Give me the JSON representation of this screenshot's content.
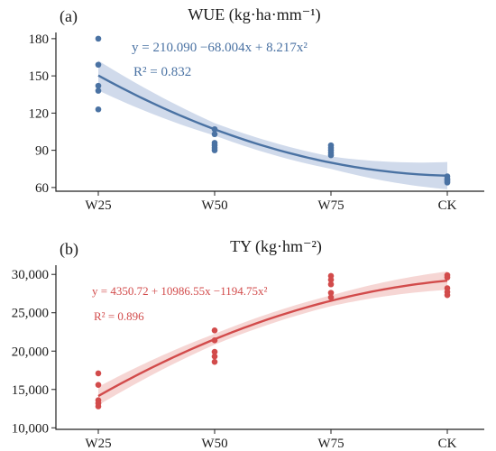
{
  "chart_data": [
    {
      "panel_label": "(a)",
      "type": "scatter",
      "title": "WUE (kg·ha·mm⁻¹)",
      "categories": [
        "W25",
        "W50",
        "W75",
        "CK"
      ],
      "x": [
        1,
        2,
        3,
        4
      ],
      "ylim": [
        57,
        185
      ],
      "yticks": [
        60,
        90,
        120,
        150,
        180
      ],
      "ytick_labels": [
        "60",
        "90",
        "120",
        "150",
        "180"
      ],
      "points": [
        {
          "x": 1,
          "y": 180
        },
        {
          "x": 1,
          "y": 159
        },
        {
          "x": 1,
          "y": 142
        },
        {
          "x": 1,
          "y": 138
        },
        {
          "x": 1,
          "y": 123
        },
        {
          "x": 2,
          "y": 107
        },
        {
          "x": 2,
          "y": 103
        },
        {
          "x": 2,
          "y": 96
        },
        {
          "x": 2,
          "y": 94
        },
        {
          "x": 2,
          "y": 92
        },
        {
          "x": 2,
          "y": 90
        },
        {
          "x": 3,
          "y": 94
        },
        {
          "x": 3,
          "y": 92
        },
        {
          "x": 3,
          "y": 90
        },
        {
          "x": 3,
          "y": 88
        },
        {
          "x": 3,
          "y": 86
        },
        {
          "x": 4,
          "y": 69
        },
        {
          "x": 4,
          "y": 67
        },
        {
          "x": 4,
          "y": 66
        },
        {
          "x": 4,
          "y": 65
        },
        {
          "x": 4,
          "y": 64
        }
      ],
      "fit": {
        "a": 210.09,
        "b": -68.004,
        "c": 8.217
      },
      "ci_halfwidth": [
        12,
        5,
        5,
        11
      ],
      "equation": "y = 210.090 −68.004x + 8.217x²",
      "r2": "R² = 0.832",
      "color": "#4a72a3",
      "band_color": "#c8d3e8",
      "grid": false
    },
    {
      "panel_label": "(b)",
      "type": "scatter",
      "title": "TY (kg·hm⁻²)",
      "categories": [
        "W25",
        "W50",
        "W75",
        "CK"
      ],
      "x": [
        1,
        2,
        3,
        4
      ],
      "ylim": [
        9800,
        31200
      ],
      "yticks": [
        10000,
        15000,
        20000,
        25000,
        30000
      ],
      "ytick_labels": [
        "10,000",
        "15,000",
        "20,000",
        "25,000",
        "30,000"
      ],
      "points": [
        {
          "x": 1,
          "y": 17100
        },
        {
          "x": 1,
          "y": 15600
        },
        {
          "x": 1,
          "y": 13600
        },
        {
          "x": 1,
          "y": 13200
        },
        {
          "x": 1,
          "y": 12800
        },
        {
          "x": 2,
          "y": 22700
        },
        {
          "x": 2,
          "y": 21400
        },
        {
          "x": 2,
          "y": 19900
        },
        {
          "x": 2,
          "y": 19300
        },
        {
          "x": 2,
          "y": 18600
        },
        {
          "x": 3,
          "y": 29800
        },
        {
          "x": 3,
          "y": 29300
        },
        {
          "x": 3,
          "y": 28700
        },
        {
          "x": 3,
          "y": 27600
        },
        {
          "x": 3,
          "y": 27000
        },
        {
          "x": 4,
          "y": 29900
        },
        {
          "x": 4,
          "y": 29600
        },
        {
          "x": 4,
          "y": 28200
        },
        {
          "x": 4,
          "y": 27700
        },
        {
          "x": 4,
          "y": 27300
        }
      ],
      "fit": {
        "a": 4350.72,
        "b": 10986.55,
        "c": -1194.75
      },
      "ci_halfwidth": [
        1200,
        700,
        700,
        1200
      ],
      "equation": "y = 4350.72 + 10986.55x −1194.75x²",
      "r2": "R² = 0.896",
      "color": "#d24b4b",
      "band_color": "#f5cfcc",
      "grid": false
    }
  ]
}
